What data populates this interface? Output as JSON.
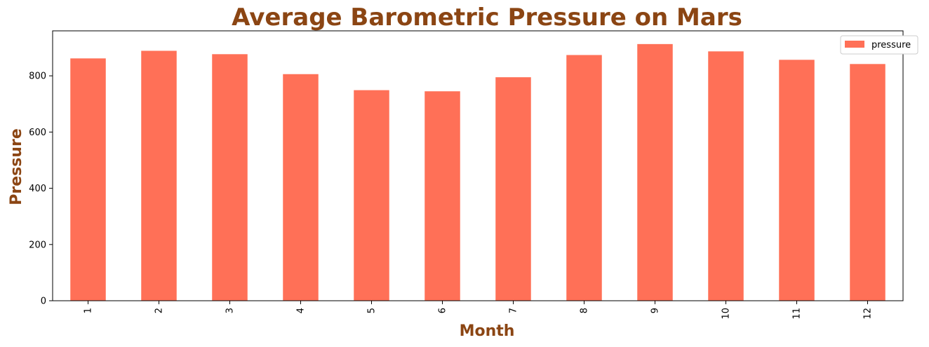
{
  "chart_data": {
    "type": "bar",
    "title": "Average Barometric Pressure on Mars",
    "xlabel": "Month",
    "ylabel": "Pressure",
    "categories": [
      "1",
      "2",
      "3",
      "4",
      "5",
      "6",
      "7",
      "8",
      "9",
      "10",
      "11",
      "12"
    ],
    "series": [
      {
        "name": "pressure",
        "values": [
          862,
          889,
          877,
          806,
          749,
          745,
          795,
          874,
          913,
          887,
          857,
          842
        ]
      }
    ],
    "ylim": [
      0,
      960
    ],
    "yticks": [
      0,
      200,
      400,
      600,
      800
    ],
    "grid": false,
    "legend": "top-right",
    "x_tick_rotation": "vertical"
  },
  "colors": {
    "bar": "#ff7057",
    "title": "#8b4513",
    "axis_label": "#8b4513"
  }
}
